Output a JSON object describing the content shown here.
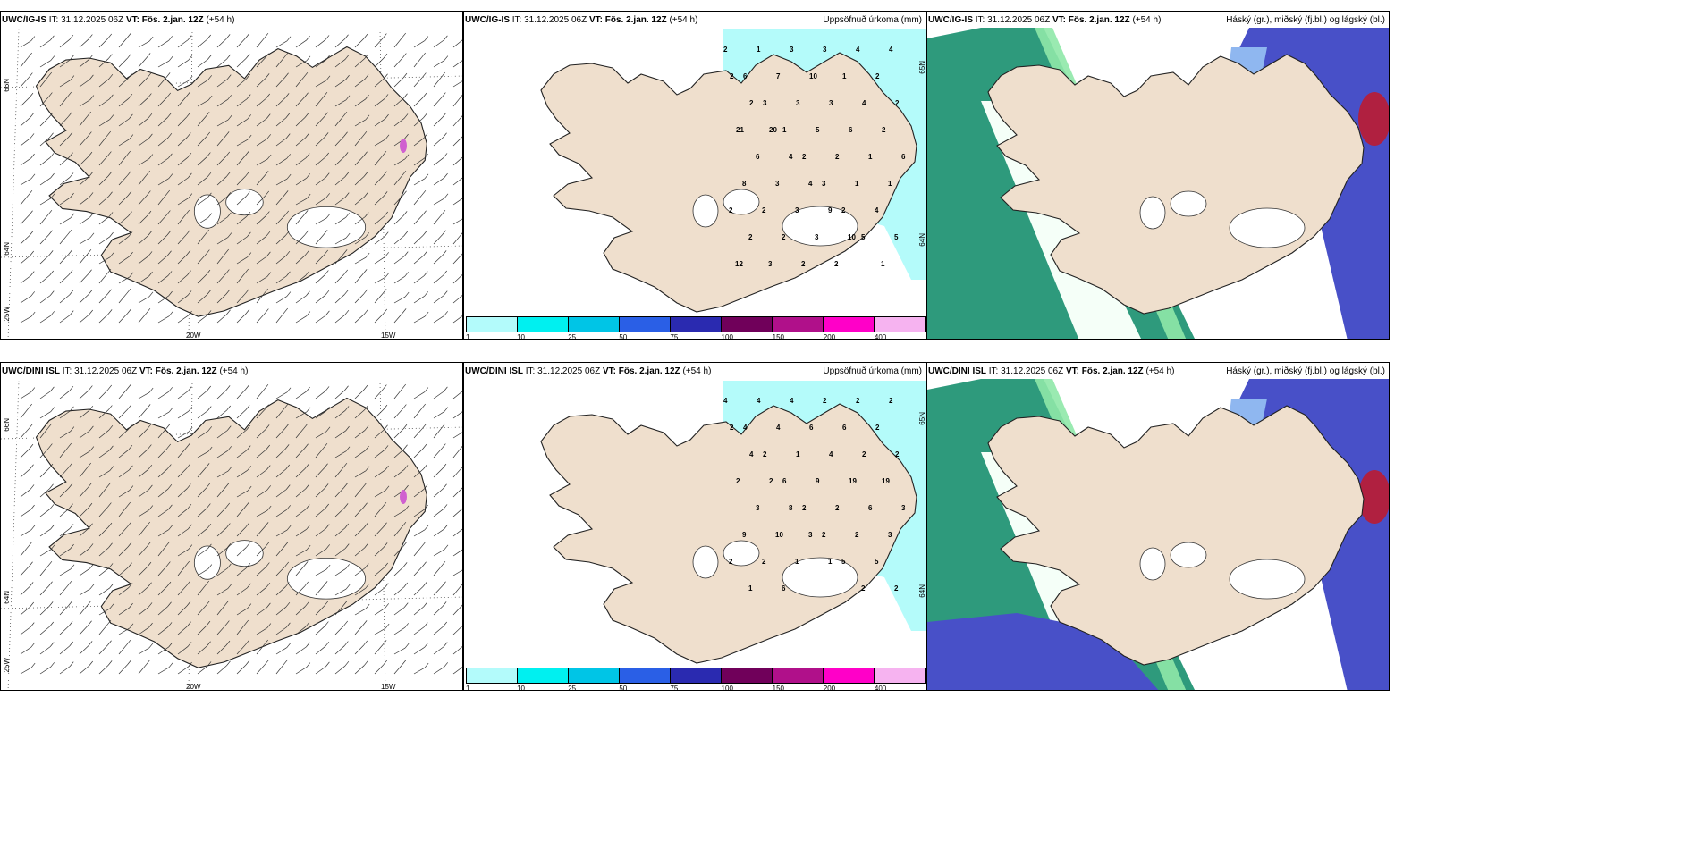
{
  "rows": [
    {
      "model": "UWC/IG-IS",
      "it_label": "IT:",
      "it_value": "31.12.2025 06Z",
      "vt_label": "VT:",
      "vt_value": "Fös. 2.jan. 12Z",
      "lead": "(+54 h)",
      "precip_numbers": [
        "2",
        "1",
        "3",
        "3",
        "4",
        "4",
        "6",
        "7",
        "10",
        "1",
        "2",
        "2",
        "3",
        "3",
        "3",
        "4",
        "2",
        "2",
        "1",
        "5",
        "6",
        "2",
        "21",
        "20",
        "2",
        "2",
        "1",
        "6",
        "6",
        "4",
        "3",
        "1",
        "1",
        "8",
        "3",
        "4",
        "2",
        "4",
        "2",
        "2",
        "3",
        "9",
        "5",
        "5",
        "2",
        "2",
        "3",
        "10",
        "1",
        "12",
        "3",
        "2",
        "2"
      ]
    },
    {
      "model": "UWC/DINI ISL",
      "it_label": "IT:",
      "it_value": "31.12.2025 06Z",
      "vt_label": "VT:",
      "vt_value": "Fös. 2.jan. 12Z",
      "lead": "(+54 h)",
      "precip_numbers": [
        "4",
        "4",
        "4",
        "2",
        "2",
        "2",
        "4",
        "4",
        "6",
        "6",
        "2",
        "2",
        "2",
        "1",
        "4",
        "2",
        "2",
        "4",
        "6",
        "9",
        "19",
        "19",
        "2",
        "2",
        "2",
        "2",
        "6",
        "3",
        "3",
        "8",
        "2",
        "2",
        "3",
        "9",
        "10",
        "3",
        "5",
        "5",
        "2",
        "2",
        "1",
        "1",
        "2",
        "2",
        "1",
        "6"
      ]
    }
  ],
  "precip_title": "Uppsöfnuð úrkoma (mm)",
  "cloud_title": "Háský (gr.), miðský (fj.bl.) og lágský (bl.)",
  "wind_axis": {
    "lat_top": "66N",
    "lat_bottom": "64N",
    "lon_left": "20W",
    "lon_right": "15W",
    "lon_corner": "25W",
    "lat_mid_right": "65N",
    "lat_mid_right_2": "64N"
  },
  "colorbar": {
    "labels": [
      "1",
      "10",
      "25",
      "50",
      "75",
      "100",
      "150",
      "200",
      "400"
    ],
    "colors": [
      "#b3fbfb",
      "#00f0f0",
      "#00c5e6",
      "#2a5fe6",
      "#2a2ab0",
      "#70005a",
      "#b0108a",
      "#ff00c8",
      "#f6b3f0"
    ]
  },
  "colors": {
    "land": "#efdfcd",
    "precip_light": "#b4fbfa",
    "precip_mid": "#5fe4e6",
    "high_cloud": "#2e9a7c",
    "mid_cloud_blue": "#4850c8",
    "mid_cloud_light": "#8fb7f0",
    "low_cloud_red": "#b02040",
    "green_light": "#8fe8a8"
  }
}
